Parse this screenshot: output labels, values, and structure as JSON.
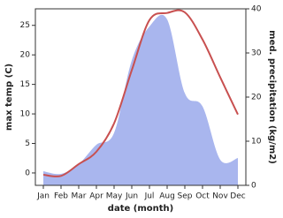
{
  "chart_data": {
    "type": "line",
    "x_label": "date (month)",
    "y_label": "max temp (C)",
    "y2_label": "med. precipitation (kg/m2)",
    "categories": [
      "Jan",
      "Feb",
      "Mar",
      "Apr",
      "May",
      "Jun",
      "Jul",
      "Aug",
      "Sep",
      "Oct",
      "Nov",
      "Dec"
    ],
    "series": [
      {
        "kind": "area",
        "axis": "y2",
        "color": "#a9b6ee",
        "values": [
          3.2,
          2.6,
          4.8,
          9.2,
          11.9,
          28.3,
          36,
          37.6,
          20.9,
          17.9,
          5.8,
          6.2
        ]
      },
      {
        "kind": "line",
        "axis": "y",
        "color": "#c85050",
        "values": [
          -0.3,
          -0.5,
          1.5,
          3.6,
          8.4,
          17.4,
          25.9,
          27.1,
          27.2,
          22.6,
          16.2,
          9.9
        ]
      }
    ],
    "ylim": [
      -2.1,
      27.8
    ],
    "yticks": [
      0,
      5,
      10,
      15,
      20,
      25
    ],
    "y2lim": [
      0,
      40
    ],
    "y2ticks": [
      0,
      10,
      20,
      30,
      40
    ]
  }
}
